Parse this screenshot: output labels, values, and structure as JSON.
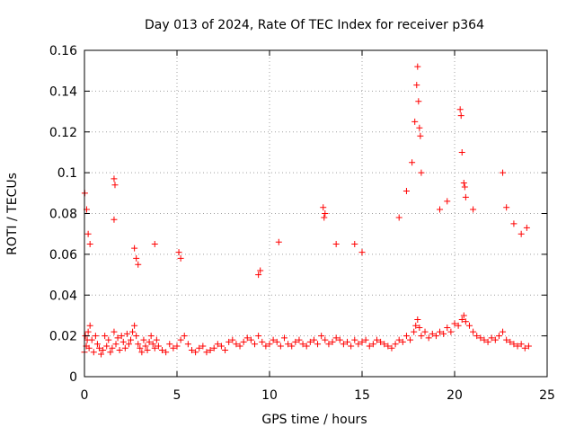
{
  "chart_data": {
    "type": "scatter",
    "title": "Day 013 of 2024, Rate Of TEC Index for receiver p364",
    "xlabel": "GPS time / hours",
    "ylabel": "ROTI / TECUs",
    "xlim": [
      0,
      25
    ],
    "ylim": [
      0,
      0.16
    ],
    "x_ticks": [
      0,
      5,
      10,
      15,
      20,
      25
    ],
    "x_tick_labels": [
      "0",
      "5",
      "10",
      "15",
      "20",
      "25"
    ],
    "y_ticks": [
      0,
      0.02,
      0.04,
      0.06,
      0.08,
      0.1,
      0.12,
      0.14,
      0.16
    ],
    "y_tick_labels": [
      "0",
      "0.02",
      "0.04",
      "0.06",
      "0.08",
      "0.1",
      "0.12",
      "0.14",
      "0.16"
    ],
    "grid": true,
    "marker": "plus",
    "color": "#ff0000",
    "series": [
      {
        "name": "ROTI",
        "x": [
          0.0,
          0.05,
          0.1,
          0.15,
          0.2,
          0.25,
          0.3,
          0.4,
          0.5,
          0.6,
          0.7,
          0.8,
          0.9,
          1.0,
          1.1,
          1.2,
          1.3,
          1.4,
          1.5,
          1.6,
          1.7,
          1.8,
          1.9,
          2.0,
          2.1,
          2.2,
          2.3,
          2.4,
          2.5,
          2.6,
          2.7,
          2.8,
          2.9,
          3.0,
          3.1,
          3.2,
          3.3,
          3.4,
          3.5,
          3.6,
          3.7,
          3.8,
          3.9,
          4.0,
          4.2,
          4.4,
          4.6,
          4.8,
          5.0,
          5.2,
          5.4,
          5.6,
          5.8,
          6.0,
          6.2,
          6.4,
          6.6,
          6.8,
          7.0,
          7.2,
          7.4,
          7.6,
          7.8,
          8.0,
          8.2,
          8.4,
          8.6,
          8.8,
          9.0,
          9.2,
          9.4,
          9.6,
          9.8,
          10.0,
          10.2,
          10.4,
          10.6,
          10.8,
          11.0,
          11.2,
          11.4,
          11.6,
          11.8,
          12.0,
          12.2,
          12.4,
          12.6,
          12.8,
          13.0,
          13.2,
          13.4,
          13.6,
          13.8,
          14.0,
          14.2,
          14.4,
          14.6,
          14.8,
          15.0,
          15.2,
          15.4,
          15.6,
          15.8,
          16.0,
          16.2,
          16.4,
          16.6,
          16.8,
          17.0,
          17.2,
          17.4,
          17.6,
          17.8,
          17.9,
          18.0,
          18.1,
          18.2,
          18.4,
          18.6,
          18.8,
          19.0,
          19.2,
          19.4,
          19.6,
          19.8,
          20.0,
          20.2,
          20.4,
          20.5,
          20.6,
          20.8,
          21.0,
          21.2,
          21.4,
          21.6,
          21.8,
          22.0,
          22.2,
          22.4,
          22.6,
          22.8,
          23.0,
          23.2,
          23.4,
          23.6,
          23.8,
          24.0,
          0.02,
          0.12,
          0.2,
          0.3,
          1.6,
          1.65,
          1.6,
          2.7,
          2.8,
          2.9,
          3.8,
          5.1,
          5.2,
          9.4,
          9.5,
          10.5,
          12.9,
          13.0,
          12.95,
          13.6,
          14.6,
          15.0,
          17.0,
          17.4,
          17.7,
          17.85,
          17.95,
          18.0,
          18.05,
          18.1,
          18.15,
          18.2,
          19.2,
          19.6,
          20.3,
          20.35,
          20.4,
          20.5,
          20.55,
          20.6,
          21.0,
          22.6,
          22.8,
          23.2,
          23.6,
          23.9
        ],
        "y": [
          0.012,
          0.02,
          0.015,
          0.018,
          0.022,
          0.014,
          0.025,
          0.018,
          0.012,
          0.02,
          0.016,
          0.014,
          0.011,
          0.013,
          0.02,
          0.015,
          0.018,
          0.012,
          0.014,
          0.022,
          0.016,
          0.019,
          0.013,
          0.02,
          0.017,
          0.014,
          0.021,
          0.016,
          0.018,
          0.022,
          0.025,
          0.02,
          0.016,
          0.014,
          0.012,
          0.018,
          0.015,
          0.013,
          0.017,
          0.02,
          0.016,
          0.014,
          0.018,
          0.015,
          0.013,
          0.012,
          0.016,
          0.014,
          0.015,
          0.018,
          0.02,
          0.016,
          0.013,
          0.012,
          0.014,
          0.015,
          0.012,
          0.013,
          0.014,
          0.016,
          0.015,
          0.013,
          0.017,
          0.018,
          0.016,
          0.015,
          0.017,
          0.019,
          0.018,
          0.016,
          0.02,
          0.017,
          0.015,
          0.016,
          0.018,
          0.017,
          0.015,
          0.019,
          0.016,
          0.015,
          0.017,
          0.018,
          0.016,
          0.015,
          0.017,
          0.018,
          0.016,
          0.02,
          0.018,
          0.016,
          0.017,
          0.019,
          0.018,
          0.016,
          0.017,
          0.015,
          0.018,
          0.016,
          0.017,
          0.018,
          0.015,
          0.016,
          0.018,
          0.017,
          0.016,
          0.015,
          0.014,
          0.016,
          0.018,
          0.017,
          0.02,
          0.018,
          0.022,
          0.025,
          0.028,
          0.024,
          0.02,
          0.022,
          0.019,
          0.021,
          0.02,
          0.022,
          0.021,
          0.024,
          0.022,
          0.026,
          0.025,
          0.028,
          0.03,
          0.027,
          0.025,
          0.022,
          0.02,
          0.019,
          0.018,
          0.017,
          0.019,
          0.018,
          0.02,
          0.022,
          0.018,
          0.017,
          0.016,
          0.015,
          0.016,
          0.014,
          0.015,
          0.09,
          0.082,
          0.07,
          0.065,
          0.097,
          0.094,
          0.077,
          0.063,
          0.058,
          0.055,
          0.065,
          0.061,
          0.058,
          0.05,
          0.052,
          0.066,
          0.083,
          0.08,
          0.078,
          0.065,
          0.065,
          0.061,
          0.078,
          0.091,
          0.105,
          0.125,
          0.143,
          0.152,
          0.135,
          0.122,
          0.118,
          0.1,
          0.082,
          0.086,
          0.131,
          0.128,
          0.11,
          0.095,
          0.093,
          0.088,
          0.082,
          0.1,
          0.083,
          0.075,
          0.07,
          0.073
        ]
      }
    ]
  }
}
